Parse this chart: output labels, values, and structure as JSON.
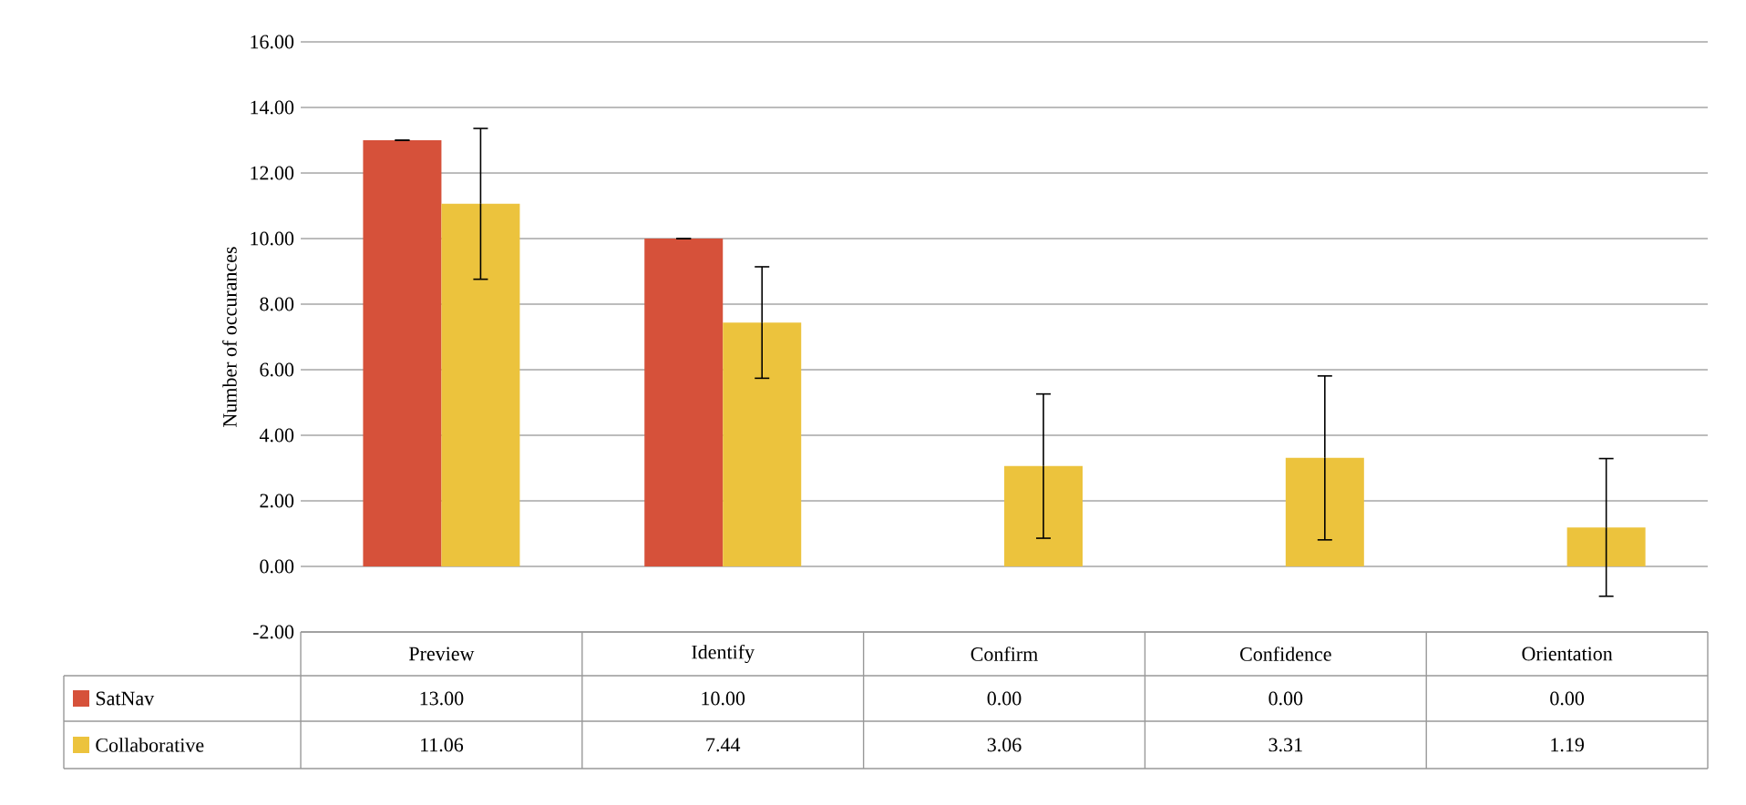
{
  "chart_data": {
    "type": "bar",
    "ylabel": "Number of occurances",
    "categories": [
      "Preview",
      "Identify",
      "Confirm",
      "Confidence",
      "Orientation"
    ],
    "series": [
      {
        "name": "SatNav",
        "color": "#d6513a",
        "values": [
          13,
          10,
          0,
          0,
          0
        ],
        "errors": [
          0,
          0,
          null,
          null,
          null
        ],
        "value_labels": [
          "13.00",
          "10.00",
          "0.00",
          "0.00",
          "0.00"
        ]
      },
      {
        "name": "Collaborative",
        "color": "#ecc33d",
        "values": [
          11.06,
          7.44,
          3.06,
          3.31,
          1.19
        ],
        "errors": [
          2.3,
          1.7,
          2.2,
          2.5,
          2.1
        ],
        "value_labels": [
          "11.06",
          "7.44",
          "3.06",
          "3.31",
          "1.19"
        ]
      }
    ],
    "ylim": [
      -2,
      16
    ],
    "yticks": [
      {
        "value": -2,
        "label": "-2.00"
      },
      {
        "value": 0,
        "label": "0.00"
      },
      {
        "value": 2,
        "label": "2.00"
      },
      {
        "value": 4,
        "label": "4.00"
      },
      {
        "value": 6,
        "label": "6.00"
      },
      {
        "value": 8,
        "label": "8.00"
      },
      {
        "value": 10,
        "label": "10.00"
      },
      {
        "value": 12,
        "label": "12.00"
      },
      {
        "value": 14,
        "label": "14.00"
      },
      {
        "value": 16,
        "label": "16.00"
      }
    ],
    "grid": "y",
    "legend": "bottom"
  }
}
